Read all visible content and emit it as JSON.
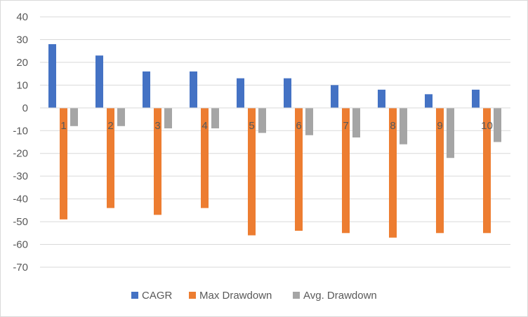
{
  "chart_data": {
    "type": "bar",
    "title": "",
    "xlabel": "",
    "ylabel": "",
    "categories": [
      "1",
      "2",
      "3",
      "4",
      "5",
      "6",
      "7",
      "8",
      "9",
      "10"
    ],
    "ylim": [
      -70,
      40
    ],
    "yticks": [
      40,
      30,
      20,
      10,
      0,
      -10,
      -20,
      -30,
      -40,
      -50,
      -60,
      -70
    ],
    "grid": true,
    "legend_position": "bottom",
    "series": [
      {
        "name": "CAGR",
        "color": "#4472c4",
        "values": [
          28,
          23,
          16,
          16,
          13,
          13,
          10,
          8,
          6,
          8
        ]
      },
      {
        "name": "Max Drawdown",
        "color": "#ed7d31",
        "values": [
          -49,
          -44,
          -47,
          -44,
          -56,
          -54,
          -55,
          -57,
          -55,
          -55
        ]
      },
      {
        "name": "Avg. Drawdown",
        "color": "#a5a5a5",
        "values": [
          -8,
          -8,
          -9,
          -9,
          -11,
          -12,
          -13,
          -16,
          -22,
          -15
        ]
      }
    ]
  }
}
